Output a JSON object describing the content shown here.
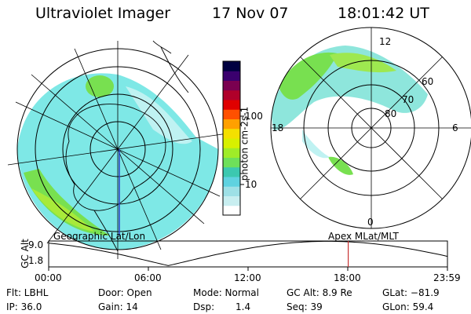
{
  "header": {
    "instrument": "Ultraviolet Imager",
    "date": "17 Nov 07",
    "time": "18:01:42 UT"
  },
  "left_map": {
    "caption": "Geographic Lat/Lon"
  },
  "right_map": {
    "caption": "Apex MLat/MLT",
    "lat_labels": [
      "60",
      "70",
      "80"
    ],
    "mlt_labels": {
      "top": "12",
      "left": "18",
      "right": "6",
      "bottom": "0"
    }
  },
  "colorbar": {
    "unit_label": "photon cm-2s-1",
    "tick_labels": [
      "100",
      "10"
    ],
    "colors": [
      "#ffffff",
      "#c8eef0",
      "#9ee0e6",
      "#5fd2e0",
      "#3cc8b0",
      "#6ee05a",
      "#a0ec28",
      "#d8f000",
      "#f4e000",
      "#ffa000",
      "#ff5000",
      "#e00000",
      "#b0002a",
      "#7a0050",
      "#3a006e",
      "#000040"
    ]
  },
  "altitude_plot": {
    "ylabel": "GC Alt",
    "yticks": [
      "9.0",
      "1.8"
    ],
    "xticks": [
      "00:00",
      "06:00",
      "12:00",
      "18:00",
      "23:59"
    ],
    "marker_time": "18:01:42",
    "marker_color": "#c83232"
  },
  "footer": {
    "flt": "Flt: LBHL",
    "ip": "IP: 36.0",
    "door": "Door: Open",
    "gain": "Gain: 14",
    "mode": "Mode: Normal",
    "dsp_label": "Dsp:",
    "dsp_value": "1.4",
    "gc_alt": "GC Alt: 8.9 Re",
    "seq": "Seq: 39",
    "glat": "GLat: −81.9",
    "glon": "GLon: 59.4"
  }
}
